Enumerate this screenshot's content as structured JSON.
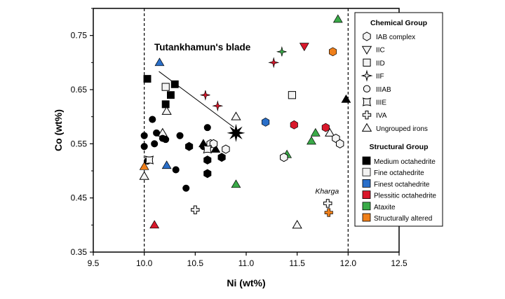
{
  "chart_data": {
    "type": "scatter",
    "xlabel": "Ni (wt%)",
    "ylabel": "Co (wt%)",
    "xlim": [
      9.5,
      12.5
    ],
    "ylim": [
      0.35,
      0.8
    ],
    "x_ticks": [
      9.5,
      10.0,
      10.5,
      11.0,
      11.5,
      12.0,
      12.5
    ],
    "x_tick_labels": [
      "9.5",
      "10.0",
      "10.5",
      "11.0",
      "11.5",
      "12.0",
      "12.5"
    ],
    "y_ticks": [
      0.35,
      0.45,
      0.55,
      0.65,
      0.75
    ],
    "y_tick_labels": [
      "0.35",
      "0.45",
      "0.55",
      "0.65",
      "0.75"
    ],
    "reference_lines_x": [
      10.0,
      12.0
    ],
    "grid": false,
    "legend_position": "right",
    "colors": {
      "Medium octahedrite": "#000000",
      "Fine octahedrite": "#ffffff",
      "Finest octahedrite": "#2a6fc9",
      "Plessitic octahedrite": "#d9182b",
      "Ataxite": "#3aaa48",
      "Structurally altered": "#ef7f1a"
    },
    "legend": {
      "chemical_title": "Chemical Group",
      "chemical": [
        {
          "label": "IAB complex",
          "shape": "hexagon"
        },
        {
          "label": "IIC",
          "shape": "triangle-down"
        },
        {
          "label": "IID",
          "shape": "square"
        },
        {
          "label": "IIF",
          "shape": "star4"
        },
        {
          "label": "IIIAB",
          "shape": "circle"
        },
        {
          "label": "IIIE",
          "shape": "concave-square"
        },
        {
          "label": "IVA",
          "shape": "cross"
        },
        {
          "label": "Ungrouped irons",
          "shape": "triangle-up"
        }
      ],
      "structural_title": "Structural Group",
      "structural": [
        {
          "label": "Medium octahedrite",
          "color": "#000000"
        },
        {
          "label": "Fine octahedrite",
          "color": "#f2f2f2"
        },
        {
          "label": "Finest octahedrite",
          "color": "#2a6fc9"
        },
        {
          "label": "Plessitic octahedrite",
          "color": "#d9182b"
        },
        {
          "label": "Ataxite",
          "color": "#3aaa48"
        },
        {
          "label": "Structurally altered",
          "color": "#ef7f1a"
        }
      ]
    },
    "annotations": {
      "blade_label": "Tutankhamun's blade",
      "blade_point": [
        10.9,
        0.57
      ],
      "blade_label_anchor": [
        10.35,
        0.69
      ],
      "kharga_label": "Kharga",
      "kharga_point": [
        11.8,
        0.44
      ]
    },
    "points": [
      {
        "x": 10.03,
        "y": 0.67,
        "shape": "square",
        "color": "#000000"
      },
      {
        "x": 10.3,
        "y": 0.66,
        "shape": "square",
        "color": "#000000"
      },
      {
        "x": 10.26,
        "y": 0.64,
        "shape": "square",
        "color": "#000000"
      },
      {
        "x": 10.21,
        "y": 0.623,
        "shape": "square",
        "color": "#000000"
      },
      {
        "x": 10.21,
        "y": 0.655,
        "shape": "square",
        "color": "#ffffff"
      },
      {
        "x": 11.45,
        "y": 0.64,
        "shape": "square",
        "color": "#ffffff"
      },
      {
        "x": 10.15,
        "y": 0.7,
        "shape": "triangle-up",
        "color": "#2a6fc9"
      },
      {
        "x": 10.1,
        "y": 0.4,
        "shape": "triangle-up",
        "color": "#d9182b"
      },
      {
        "x": 11.9,
        "y": 0.78,
        "shape": "triangle-up",
        "color": "#3aaa48"
      },
      {
        "x": 11.98,
        "y": 0.632,
        "shape": "triangle-up",
        "color": "#000000"
      },
      {
        "x": 10.22,
        "y": 0.61,
        "shape": "triangle-up",
        "color": "#ffffff"
      },
      {
        "x": 10.18,
        "y": 0.57,
        "shape": "triangle-up",
        "color": "#ffffff"
      },
      {
        "x": 10.0,
        "y": 0.49,
        "shape": "triangle-up",
        "color": "#ffffff"
      },
      {
        "x": 10.9,
        "y": 0.6,
        "shape": "triangle-up",
        "color": "#ffffff"
      },
      {
        "x": 10.7,
        "y": 0.54,
        "shape": "triangle-up",
        "color": "#000000"
      },
      {
        "x": 10.58,
        "y": 0.55,
        "shape": "triangle-up",
        "color": "#000000"
      },
      {
        "x": 10.22,
        "y": 0.51,
        "shape": "triangle-up",
        "color": "#2a6fc9"
      },
      {
        "x": 10.0,
        "y": 0.508,
        "shape": "triangle-up",
        "color": "#ef7f1a"
      },
      {
        "x": 10.9,
        "y": 0.475,
        "shape": "triangle-up",
        "color": "#3aaa48"
      },
      {
        "x": 11.4,
        "y": 0.53,
        "shape": "triangle-up",
        "color": "#3aaa48"
      },
      {
        "x": 11.64,
        "y": 0.555,
        "shape": "triangle-up",
        "color": "#3aaa48"
      },
      {
        "x": 11.68,
        "y": 0.57,
        "shape": "triangle-up",
        "color": "#3aaa48"
      },
      {
        "x": 11.82,
        "y": 0.57,
        "shape": "triangle-up",
        "color": "#ffffff"
      },
      {
        "x": 11.5,
        "y": 0.4,
        "shape": "triangle-up",
        "color": "#ffffff"
      },
      {
        "x": 11.57,
        "y": 0.73,
        "shape": "triangle-down",
        "color": "#d9182b"
      },
      {
        "x": 11.35,
        "y": 0.72,
        "shape": "star4",
        "color": "#3aaa48"
      },
      {
        "x": 11.27,
        "y": 0.7,
        "shape": "star4",
        "color": "#d9182b"
      },
      {
        "x": 10.6,
        "y": 0.64,
        "shape": "star4",
        "color": "#d9182b"
      },
      {
        "x": 10.72,
        "y": 0.62,
        "shape": "star4",
        "color": "#d9182b"
      },
      {
        "x": 11.85,
        "y": 0.72,
        "shape": "hexagon",
        "color": "#ef7f1a"
      },
      {
        "x": 11.19,
        "y": 0.59,
        "shape": "hexagon",
        "color": "#2a6fc9"
      },
      {
        "x": 11.47,
        "y": 0.585,
        "shape": "hexagon",
        "color": "#d9182b"
      },
      {
        "x": 11.78,
        "y": 0.58,
        "shape": "hexagon",
        "color": "#d9182b"
      },
      {
        "x": 10.44,
        "y": 0.545,
        "shape": "hexagon",
        "color": "#000000"
      },
      {
        "x": 10.62,
        "y": 0.52,
        "shape": "hexagon",
        "color": "#000000"
      },
      {
        "x": 10.62,
        "y": 0.495,
        "shape": "hexagon",
        "color": "#000000"
      },
      {
        "x": 10.76,
        "y": 0.525,
        "shape": "hexagon",
        "color": "#000000"
      },
      {
        "x": 10.65,
        "y": 0.55,
        "shape": "hexagon",
        "color": "#ffffff"
      },
      {
        "x": 10.68,
        "y": 0.55,
        "shape": "hexagon",
        "color": "#ffffff"
      },
      {
        "x": 10.8,
        "y": 0.54,
        "shape": "hexagon",
        "color": "#ffffff"
      },
      {
        "x": 11.37,
        "y": 0.525,
        "shape": "hexagon",
        "color": "#ffffff"
      },
      {
        "x": 11.88,
        "y": 0.56,
        "shape": "hexagon",
        "color": "#ffffff"
      },
      {
        "x": 11.92,
        "y": 0.55,
        "shape": "hexagon",
        "color": "#ffffff"
      },
      {
        "x": 10.08,
        "y": 0.595,
        "shape": "circle",
        "color": "#000000"
      },
      {
        "x": 10.12,
        "y": 0.57,
        "shape": "circle",
        "color": "#000000"
      },
      {
        "x": 10.0,
        "y": 0.565,
        "shape": "circle",
        "color": "#000000"
      },
      {
        "x": 10.0,
        "y": 0.545,
        "shape": "circle",
        "color": "#000000"
      },
      {
        "x": 10.1,
        "y": 0.55,
        "shape": "circle",
        "color": "#000000"
      },
      {
        "x": 10.18,
        "y": 0.56,
        "shape": "circle",
        "color": "#000000"
      },
      {
        "x": 10.21,
        "y": 0.558,
        "shape": "circle",
        "color": "#000000"
      },
      {
        "x": 10.35,
        "y": 0.565,
        "shape": "circle",
        "color": "#000000"
      },
      {
        "x": 10.03,
        "y": 0.518,
        "shape": "circle",
        "color": "#000000"
      },
      {
        "x": 10.31,
        "y": 0.502,
        "shape": "circle",
        "color": "#000000"
      },
      {
        "x": 10.41,
        "y": 0.468,
        "shape": "circle",
        "color": "#000000"
      },
      {
        "x": 10.58,
        "y": 0.545,
        "shape": "circle",
        "color": "#000000"
      },
      {
        "x": 10.62,
        "y": 0.58,
        "shape": "circle",
        "color": "#000000"
      },
      {
        "x": 10.05,
        "y": 0.52,
        "shape": "concave-square",
        "color": "#ffffff"
      },
      {
        "x": 10.62,
        "y": 0.54,
        "shape": "concave-square",
        "color": "#ffffff"
      },
      {
        "x": 10.5,
        "y": 0.428,
        "shape": "cross",
        "color": "#ffffff"
      },
      {
        "x": 11.8,
        "y": 0.44,
        "shape": "cross",
        "color": "#ffffff"
      },
      {
        "x": 11.81,
        "y": 0.423,
        "shape": "cross",
        "color": "#ef7f1a"
      }
    ]
  }
}
